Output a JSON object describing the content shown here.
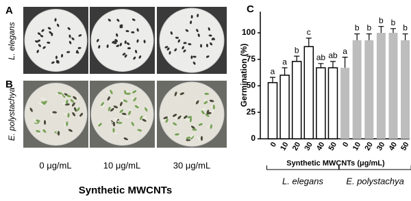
{
  "panels": {
    "a_label": "A",
    "b_label": "B",
    "c_label": "C",
    "row_labels": [
      "L. elegans",
      "E. polystachya"
    ],
    "column_labels": [
      "0 μg/mL",
      "10 μg/mL",
      "30 μg/mL"
    ],
    "caption": "Synthetic MWCNTs"
  },
  "chart_data": {
    "type": "bar",
    "y_label": "Germination (%)",
    "x_label": "Synthetic MWCNTs (μg/mL)",
    "ylim": [
      0,
      120
    ],
    "yticks": [
      0,
      25,
      50,
      75,
      100
    ],
    "groups": [
      {
        "name": "L. elegans",
        "color": "#ffffff",
        "categories": [
          "0",
          "10",
          "20",
          "30",
          "40",
          "50"
        ],
        "values": [
          53,
          60,
          73,
          87,
          67,
          67
        ],
        "errors": [
          5,
          7,
          5,
          8,
          4,
          6
        ],
        "letters": [
          "a",
          "a",
          "b",
          "c",
          "ab",
          "ab"
        ]
      },
      {
        "name": "E. polystachya",
        "color": "#bdbdbd",
        "categories": [
          "0",
          "10",
          "20",
          "30",
          "40",
          "50"
        ],
        "values": [
          67,
          93,
          93,
          100,
          100,
          93
        ],
        "errors": [
          10,
          6,
          6,
          6,
          4,
          6
        ],
        "letters": [
          "a",
          "b",
          "b",
          "b",
          "b",
          "b"
        ]
      }
    ]
  }
}
